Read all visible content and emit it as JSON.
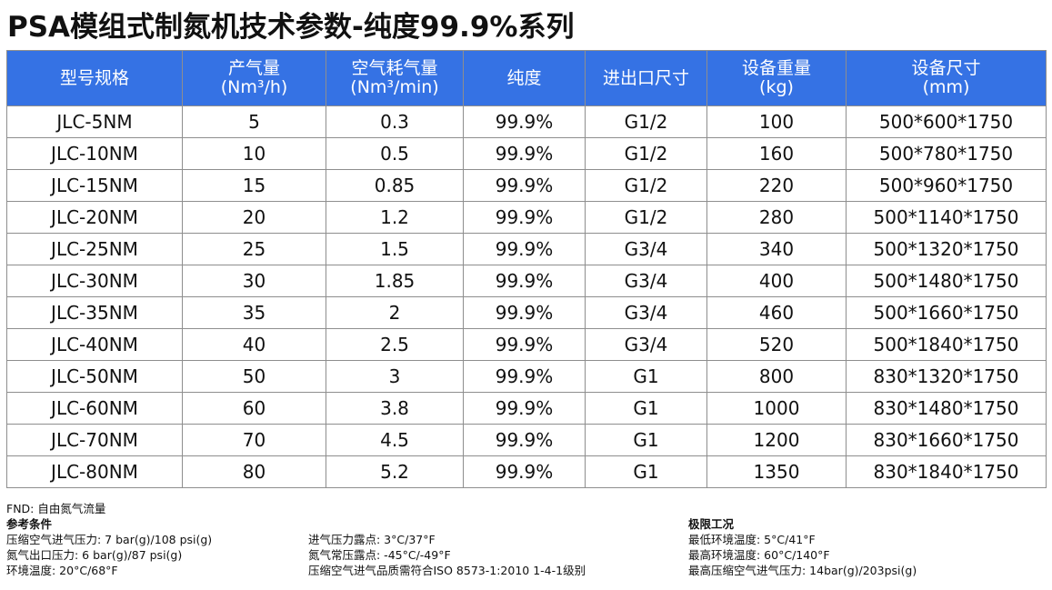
{
  "title": "PSA模组式制氮机技术参数-纯度99.9%系列",
  "table": {
    "headers": [
      {
        "line1": "型号规格",
        "line2": ""
      },
      {
        "line1": "产气量",
        "line2": "(Nm³/h)"
      },
      {
        "line1": "空气耗气量",
        "line2": "(Nm³/min)"
      },
      {
        "line1": "纯度",
        "line2": ""
      },
      {
        "line1": "进出口尺寸",
        "line2": ""
      },
      {
        "line1": "设备重量",
        "line2": "(kg)"
      },
      {
        "line1": "设备尺寸",
        "line2": "(mm)"
      }
    ],
    "rows": [
      [
        "JLC-5NM",
        "5",
        "0.3",
        "99.9%",
        "G1/2",
        "100",
        "500*600*1750"
      ],
      [
        "JLC-10NM",
        "10",
        "0.5",
        "99.9%",
        "G1/2",
        "160",
        "500*780*1750"
      ],
      [
        "JLC-15NM",
        "15",
        "0.85",
        "99.9%",
        "G1/2",
        "220",
        "500*960*1750"
      ],
      [
        "JLC-20NM",
        "20",
        "1.2",
        "99.9%",
        "G1/2",
        "280",
        "500*1140*1750"
      ],
      [
        "JLC-25NM",
        "25",
        "1.5",
        "99.9%",
        "G3/4",
        "340",
        "500*1320*1750"
      ],
      [
        "JLC-30NM",
        "30",
        "1.85",
        "99.9%",
        "G3/4",
        "400",
        "500*1480*1750"
      ],
      [
        "JLC-35NM",
        "35",
        "2",
        "99.9%",
        "G3/4",
        "460",
        "500*1660*1750"
      ],
      [
        "JLC-40NM",
        "40",
        "2.5",
        "99.9%",
        "G3/4",
        "520",
        "500*1840*1750"
      ],
      [
        "JLC-50NM",
        "50",
        "3",
        "99.9%",
        "G1",
        "800",
        "830*1320*1750"
      ],
      [
        "JLC-60NM",
        "60",
        "3.8",
        "99.9%",
        "G1",
        "1000",
        "830*1480*1750"
      ],
      [
        "JLC-70NM",
        "70",
        "4.5",
        "99.9%",
        "G1",
        "1200",
        "830*1660*1750"
      ],
      [
        "JLC-80NM",
        "80",
        "5.2",
        "99.9%",
        "G1",
        "1350",
        "830*1840*1750"
      ]
    ]
  },
  "notes": {
    "fnd": "FND: 自由氮气流量",
    "ref_title": "参考条件",
    "ref_col1": [
      "压缩空气进气压力: 7 bar(g)/108 psi(g)",
      "氮气出口压力: 6 bar(g)/87 psi(g)",
      "环境温度: 20°C/68°F"
    ],
    "ref_col2": [
      "进气压力露点: 3°C/37°F",
      "氮气常压露点: -45°C/-49°F",
      "压缩空气进气品质需符合ISO 8573-1:2010 1-4-1级别"
    ],
    "limit_title": "极限工况",
    "limit_items": [
      "最低环境温度: 5°C/41°F",
      "最高环境温度: 60°C/140°F",
      "最高压缩空气进气压力: 14bar(g)/203psi(g)"
    ]
  },
  "colors": {
    "header_bg": "#3572e4",
    "header_text": "#ffffff",
    "border": "#8e8e8e"
  }
}
